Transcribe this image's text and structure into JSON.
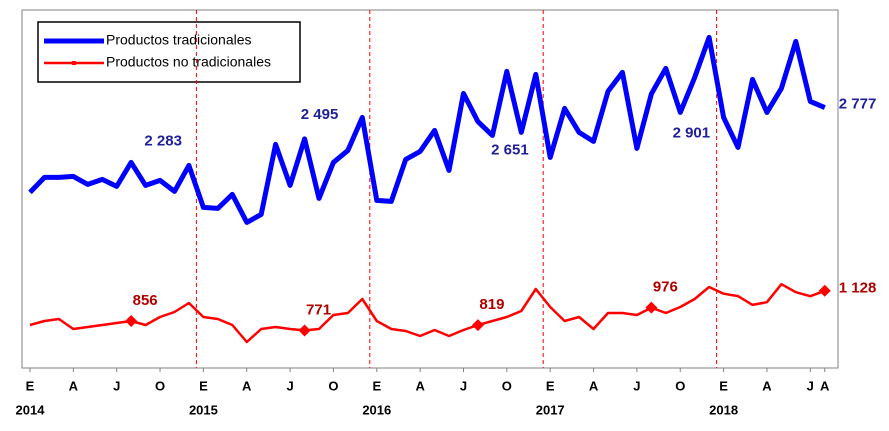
{
  "chart_data": {
    "type": "line",
    "categories": [
      "E",
      null,
      null,
      "A",
      null,
      null,
      "J",
      null,
      null,
      "O",
      null,
      null,
      "E",
      null,
      null,
      "A",
      null,
      null,
      "J",
      null,
      null,
      "O",
      null,
      null,
      "E",
      null,
      null,
      "A",
      null,
      null,
      "J",
      null,
      null,
      "O",
      null,
      null,
      "E",
      null,
      null,
      "A",
      null,
      null,
      "J",
      null,
      null,
      "O",
      null,
      null,
      "E",
      null,
      null,
      "A",
      null,
      null,
      "J",
      "A"
    ],
    "years": [
      "2014",
      "2015",
      "2016",
      "2017",
      "2018"
    ],
    "ylim": [
      433,
      3655
    ],
    "legend": "top-left",
    "series": [
      {
        "name": "Productos tradicionales",
        "color": "#0000ff",
        "label_color": "#1f1f99",
        "values": [
          2013,
          2148,
          2148,
          2157,
          2085,
          2130,
          2067,
          2283,
          2076,
          2121,
          2022,
          2256,
          1878,
          1869,
          1995,
          1743,
          1815,
          2445,
          2076,
          2495,
          1959,
          2283,
          2391,
          2688,
          1941,
          1932,
          2310,
          2382,
          2571,
          2211,
          2904,
          2651,
          2526,
          3102,
          2553,
          3075,
          2328,
          2769,
          2553,
          2472,
          2922,
          3093,
          2409,
          2901,
          3129,
          2733,
          3048,
          3408,
          2688,
          2418,
          3030,
          2733,
          2949,
          3372,
          2832,
          2777
        ],
        "value_labels": [
          null,
          null,
          null,
          null,
          null,
          null,
          null,
          "2 283",
          null,
          null,
          null,
          null,
          null,
          null,
          null,
          null,
          null,
          null,
          null,
          "2 495",
          null,
          null,
          null,
          null,
          null,
          null,
          null,
          null,
          null,
          null,
          null,
          "2 651",
          null,
          null,
          null,
          null,
          null,
          null,
          null,
          null,
          null,
          null,
          null,
          "2 901",
          null,
          null,
          null,
          null,
          null,
          null,
          null,
          null,
          null,
          null,
          null,
          "2 777"
        ]
      },
      {
        "name": "Productos no tradicionales",
        "color": "#ff0000",
        "label_color": "#b00000",
        "values": [
          820,
          856,
          874,
          784,
          802,
          820,
          838,
          856,
          820,
          892,
          937,
          1018,
          892,
          874,
          820,
          667,
          784,
          802,
          784,
          771,
          784,
          910,
          928,
          1054,
          856,
          784,
          766,
          721,
          775,
          721,
          775,
          819,
          856,
          892,
          946,
          1144,
          982,
          856,
          892,
          784,
          928,
          928,
          910,
          976,
          928,
          982,
          1054,
          1162,
          1102,
          1080,
          1001,
          1025,
          1187,
          1115,
          1079,
          1128
        ],
        "value_labels": [
          null,
          null,
          null,
          null,
          null,
          null,
          null,
          "856",
          null,
          null,
          null,
          null,
          null,
          null,
          null,
          null,
          null,
          null,
          null,
          "771",
          null,
          null,
          null,
          null,
          null,
          null,
          null,
          null,
          null,
          null,
          null,
          "819",
          null,
          null,
          null,
          null,
          null,
          null,
          null,
          null,
          null,
          null,
          null,
          "976",
          null,
          null,
          null,
          null,
          null,
          null,
          null,
          null,
          null,
          null,
          null,
          "1 128"
        ]
      }
    ]
  }
}
